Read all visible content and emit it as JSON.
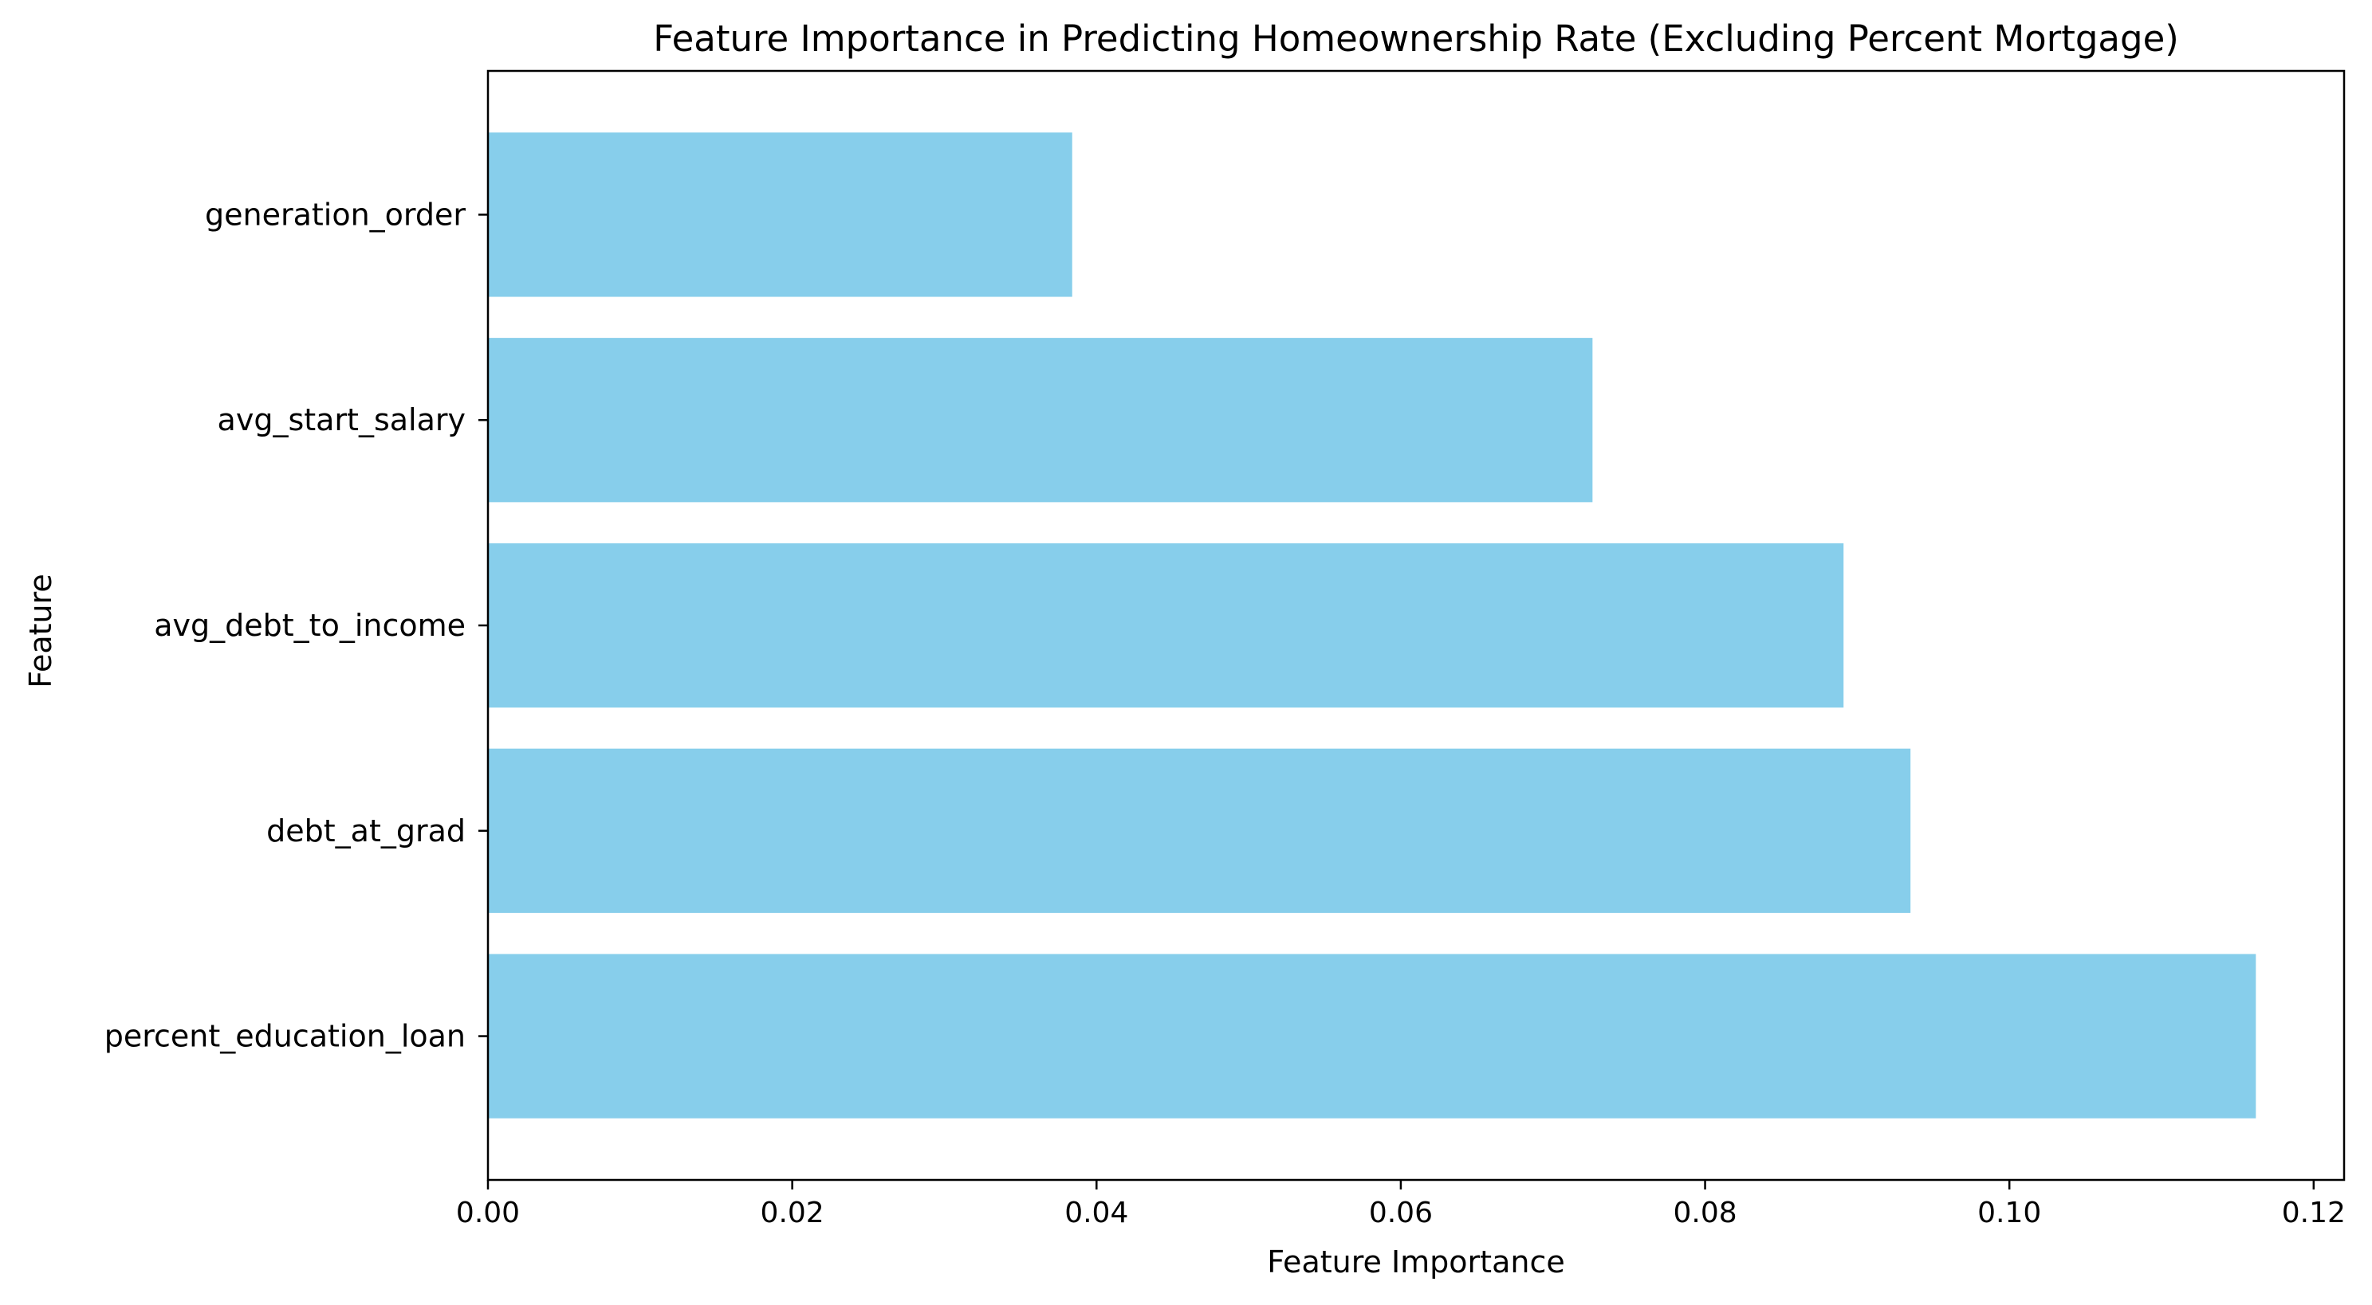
{
  "chart_data": {
    "type": "bar",
    "orientation": "horizontal",
    "title": "Feature Importance in Predicting Homeownership Rate (Excluding Percent Mortgage)",
    "xlabel": "Feature Importance",
    "ylabel": "Feature",
    "categories": [
      "percent_education_loan",
      "debt_at_grad",
      "avg_debt_to_income",
      "avg_start_salary",
      "generation_order"
    ],
    "values": [
      0.1162,
      0.0935,
      0.0891,
      0.0726,
      0.0384
    ],
    "xlim": [
      0,
      0.122
    ],
    "xticks": [
      0.0,
      0.02,
      0.04,
      0.06,
      0.08,
      0.1,
      0.12
    ],
    "xtick_labels": [
      "0.00",
      "0.02",
      "0.04",
      "0.06",
      "0.08",
      "0.10",
      "0.12"
    ],
    "bar_color": "#87ceeb",
    "grid": false,
    "legend": false
  }
}
